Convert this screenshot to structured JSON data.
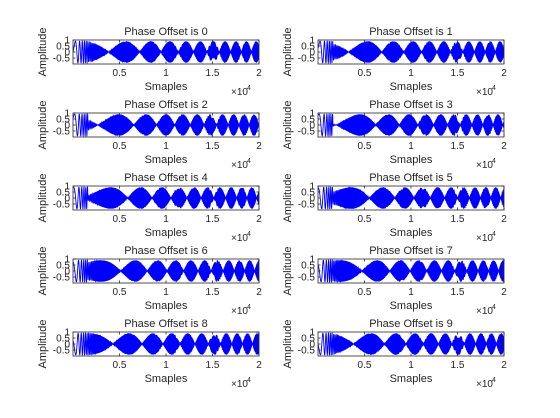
{
  "chart_data": [
    {
      "type": "line",
      "title": "Phase Offset is 0",
      "xlabel": "Smaples",
      "ylabel": "Amplitude",
      "xlim": [
        0,
        20000
      ],
      "ylim": [
        -1,
        1
      ],
      "x_ticks": [
        "0.5",
        "1",
        "1.5",
        "2"
      ],
      "x_tick_values": [
        5000,
        10000,
        15000,
        20000
      ],
      "y_ticks": [
        "-0.5",
        "0",
        "0.5",
        "1"
      ],
      "y_tick_values": [
        -0.5,
        0,
        0.5,
        1
      ],
      "x_exponent_label": "×10",
      "x_exponent_power": "4",
      "phase_offset": 0,
      "series": [
        {
          "color": "#0000ff",
          "description": "amplitude-modulated chirp"
        }
      ]
    },
    {
      "type": "line",
      "title": "Phase Offset is 1",
      "xlabel": "Smaples",
      "ylabel": "Amplitude",
      "xlim": [
        0,
        20000
      ],
      "ylim": [
        -1,
        1
      ],
      "x_ticks": [
        "0.5",
        "1",
        "1.5",
        "2"
      ],
      "x_tick_values": [
        5000,
        10000,
        15000,
        20000
      ],
      "y_ticks": [
        "-0.5",
        "0",
        "0.5",
        "1"
      ],
      "y_tick_values": [
        -0.5,
        0,
        0.5,
        1
      ],
      "x_exponent_label": "×10",
      "x_exponent_power": "4",
      "phase_offset": 1,
      "series": [
        {
          "color": "#0000ff"
        }
      ]
    },
    {
      "type": "line",
      "title": "Phase Offset is 2",
      "xlabel": "Smaples",
      "ylabel": "Amplitude",
      "xlim": [
        0,
        20000
      ],
      "ylim": [
        -1,
        1
      ],
      "x_ticks": [
        "0.5",
        "1",
        "1.5",
        "2"
      ],
      "x_tick_values": [
        5000,
        10000,
        15000,
        20000
      ],
      "y_ticks": [
        "-0.5",
        "0",
        "0.5",
        "1"
      ],
      "y_tick_values": [
        -0.5,
        0,
        0.5,
        1
      ],
      "x_exponent_label": "×10",
      "x_exponent_power": "4",
      "phase_offset": 2,
      "series": [
        {
          "color": "#0000ff"
        }
      ]
    },
    {
      "type": "line",
      "title": "Phase Offset is 3",
      "xlabel": "Smaples",
      "ylabel": "Amplitude",
      "xlim": [
        0,
        20000
      ],
      "ylim": [
        -1,
        1
      ],
      "x_ticks": [
        "0.5",
        "1",
        "1.5",
        "2"
      ],
      "x_tick_values": [
        5000,
        10000,
        15000,
        20000
      ],
      "y_ticks": [
        "-0.5",
        "0",
        "0.5",
        "1"
      ],
      "y_tick_values": [
        -0.5,
        0,
        0.5,
        1
      ],
      "x_exponent_label": "×10",
      "x_exponent_power": "4",
      "phase_offset": 3,
      "series": [
        {
          "color": "#0000ff"
        }
      ]
    },
    {
      "type": "line",
      "title": "Phase Offset is 4",
      "xlabel": "Smaples",
      "ylabel": "Amplitude",
      "xlim": [
        0,
        20000
      ],
      "ylim": [
        -1,
        1
      ],
      "x_ticks": [
        "0.5",
        "1",
        "1.5",
        "2"
      ],
      "x_tick_values": [
        5000,
        10000,
        15000,
        20000
      ],
      "y_ticks": [
        "-0.5",
        "0",
        "0.5",
        "1"
      ],
      "y_tick_values": [
        -0.5,
        0,
        0.5,
        1
      ],
      "x_exponent_label": "×10",
      "x_exponent_power": "4",
      "phase_offset": 4,
      "series": [
        {
          "color": "#0000ff"
        }
      ]
    },
    {
      "type": "line",
      "title": "Phase Offset is 5",
      "xlabel": "Smaples",
      "ylabel": "Amplitude",
      "xlim": [
        0,
        20000
      ],
      "ylim": [
        -1,
        1
      ],
      "x_ticks": [
        "0.5",
        "1",
        "1.5",
        "2"
      ],
      "x_tick_values": [
        5000,
        10000,
        15000,
        20000
      ],
      "y_ticks": [
        "-0.5",
        "0",
        "0.5",
        "1"
      ],
      "y_tick_values": [
        -0.5,
        0,
        0.5,
        1
      ],
      "x_exponent_label": "×10",
      "x_exponent_power": "4",
      "phase_offset": 5,
      "series": [
        {
          "color": "#0000ff"
        }
      ]
    },
    {
      "type": "line",
      "title": "Phase Offset is 6",
      "xlabel": "Smaples",
      "ylabel": "Amplitude",
      "xlim": [
        0,
        20000
      ],
      "ylim": [
        -1,
        1
      ],
      "x_ticks": [
        "0.5",
        "1",
        "1.5",
        "2"
      ],
      "x_tick_values": [
        5000,
        10000,
        15000,
        20000
      ],
      "y_ticks": [
        "-0.5",
        "0",
        "0.5",
        "1"
      ],
      "y_tick_values": [
        -0.5,
        0,
        0.5,
        1
      ],
      "x_exponent_label": "×10",
      "x_exponent_power": "4",
      "phase_offset": 6,
      "series": [
        {
          "color": "#0000ff"
        }
      ]
    },
    {
      "type": "line",
      "title": "Phase Offset is 7",
      "xlabel": "Smaples",
      "ylabel": "Amplitude",
      "xlim": [
        0,
        20000
      ],
      "ylim": [
        -1,
        1
      ],
      "x_ticks": [
        "0.5",
        "1",
        "1.5",
        "2"
      ],
      "x_tick_values": [
        5000,
        10000,
        15000,
        20000
      ],
      "y_ticks": [
        "-0.5",
        "0",
        "0.5",
        "1"
      ],
      "y_tick_values": [
        -0.5,
        0,
        0.5,
        1
      ],
      "x_exponent_label": "×10",
      "x_exponent_power": "4",
      "phase_offset": 7,
      "series": [
        {
          "color": "#0000ff"
        }
      ]
    },
    {
      "type": "line",
      "title": "Phase Offset is 8",
      "xlabel": "Smaples",
      "ylabel": "Amplitude",
      "xlim": [
        0,
        20000
      ],
      "ylim": [
        -1,
        1
      ],
      "x_ticks": [
        "0.5",
        "1",
        "1.5",
        "2"
      ],
      "x_tick_values": [
        5000,
        10000,
        15000,
        20000
      ],
      "y_ticks": [
        "-0.5",
        "0",
        "0.5",
        "1"
      ],
      "y_tick_values": [
        -0.5,
        0,
        0.5,
        1
      ],
      "x_exponent_label": "×10",
      "x_exponent_power": "4",
      "phase_offset": 8,
      "series": [
        {
          "color": "#0000ff"
        }
      ]
    },
    {
      "type": "line",
      "title": "Phase Offset is 9",
      "xlabel": "Smaples",
      "ylabel": "Amplitude",
      "xlim": [
        0,
        20000
      ],
      "ylim": [
        -1,
        1
      ],
      "x_ticks": [
        "0.5",
        "1",
        "1.5",
        "2"
      ],
      "x_tick_values": [
        5000,
        10000,
        15000,
        20000
      ],
      "y_ticks": [
        "-0.5",
        "0",
        "0.5",
        "1"
      ],
      "y_tick_values": [
        -0.5,
        0,
        0.5,
        1
      ],
      "x_exponent_label": "×10",
      "x_exponent_power": "4",
      "phase_offset": 9,
      "series": [
        {
          "color": "#0000ff"
        }
      ]
    }
  ]
}
